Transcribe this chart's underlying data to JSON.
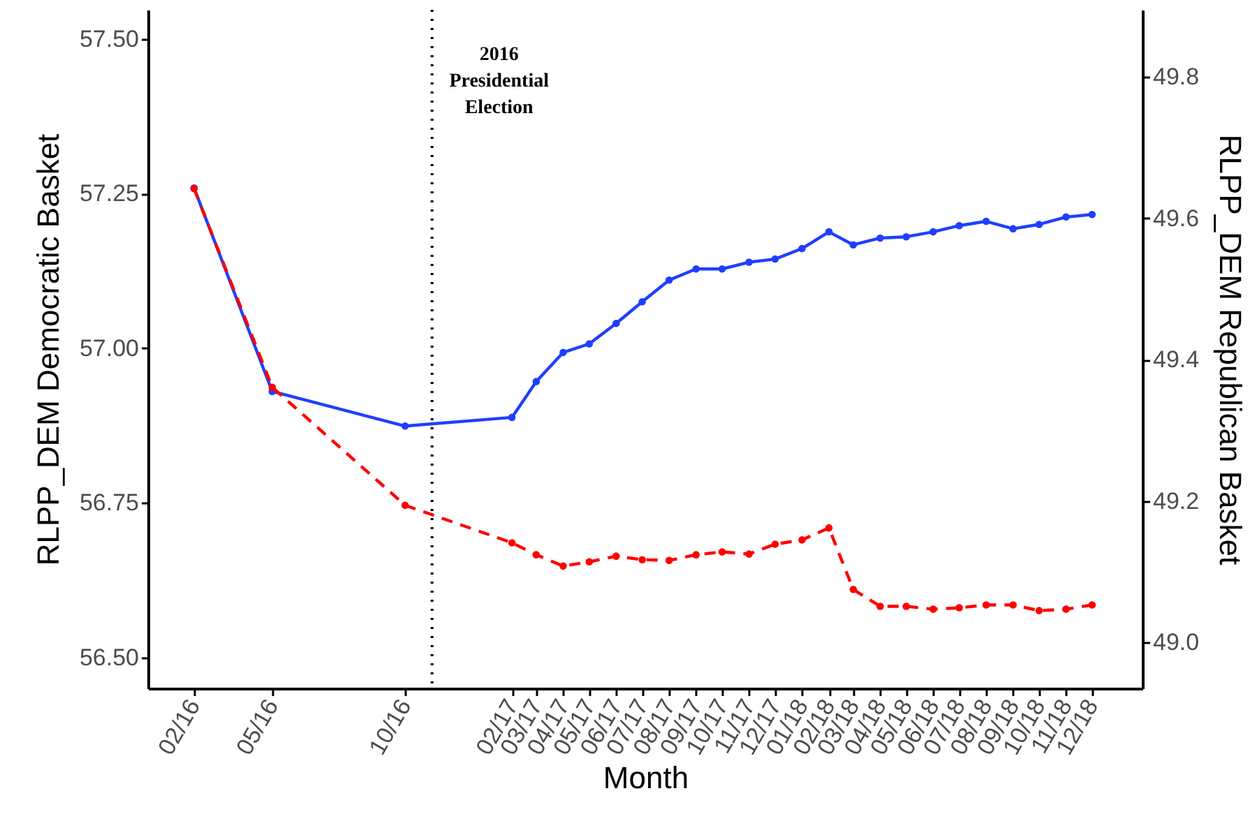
{
  "chart_data": {
    "type": "line",
    "xlabel": "Month",
    "ylabel": "RLPP_DEM Democratic Basket",
    "y2label": "RLPP_DEM Republican Basket",
    "x": [
      "2016-02",
      "2016-05",
      "2016-10",
      "2017-02",
      "2017-03",
      "2017-04",
      "2017-05",
      "2017-06",
      "2017-07",
      "2017-08",
      "2017-09",
      "2017-10",
      "2017-11",
      "2017-12",
      "2018-01",
      "2018-02",
      "2018-03",
      "2018-04",
      "2018-05",
      "2018-06",
      "2018-07",
      "2018-08",
      "2018-09",
      "2018-10",
      "2018-11",
      "2018-12"
    ],
    "series": [
      {
        "color": "#1f3fff",
        "line_style": "solid",
        "axis": "y",
        "values": [
          57.259,
          56.93,
          56.874,
          56.888,
          56.946,
          56.993,
          57.007,
          57.04,
          57.075,
          57.11,
          57.128,
          57.128,
          57.139,
          57.144,
          57.161,
          57.188,
          57.167,
          57.178,
          57.18,
          57.188,
          57.198,
          57.205,
          57.193,
          57.2,
          57.212,
          57.216
        ]
      },
      {
        "color": "#ff0000",
        "line_style": "dashed",
        "axis": "y2",
        "values": [
          49.642,
          49.361,
          49.194,
          49.141,
          49.124,
          49.108,
          49.114,
          49.122,
          49.117,
          49.116,
          49.124,
          49.128,
          49.125,
          49.139,
          49.145,
          49.162,
          49.075,
          49.051,
          49.051,
          49.047,
          49.049,
          49.053,
          49.053,
          49.045,
          49.047,
          49.053
        ]
      }
    ],
    "xlim": [
      "2015-12-10",
      "2019-01-28"
    ],
    "xticks": [
      {
        "value": "2016-02",
        "label": "02/16"
      },
      {
        "value": "2016-05",
        "label": "05/16"
      },
      {
        "value": "2016-10",
        "label": "10/16"
      },
      {
        "value": "2017-02",
        "label": "02/17"
      },
      {
        "value": "2017-03",
        "label": "03/17"
      },
      {
        "value": "2017-04",
        "label": "04/17"
      },
      {
        "value": "2017-05",
        "label": "05/17"
      },
      {
        "value": "2017-06",
        "label": "06/17"
      },
      {
        "value": "2017-07",
        "label": "07/17"
      },
      {
        "value": "2017-08",
        "label": "08/17"
      },
      {
        "value": "2017-09",
        "label": "09/17"
      },
      {
        "value": "2017-10",
        "label": "10/17"
      },
      {
        "value": "2017-11",
        "label": "11/17"
      },
      {
        "value": "2017-12",
        "label": "12/17"
      },
      {
        "value": "2018-01",
        "label": "01/18"
      },
      {
        "value": "2018-02",
        "label": "02/18"
      },
      {
        "value": "2018-03",
        "label": "03/18"
      },
      {
        "value": "2018-04",
        "label": "04/18"
      },
      {
        "value": "2018-05",
        "label": "05/18"
      },
      {
        "value": "2018-06",
        "label": "06/18"
      },
      {
        "value": "2018-07",
        "label": "07/18"
      },
      {
        "value": "2018-08",
        "label": "08/18"
      },
      {
        "value": "2018-09",
        "label": "09/18"
      },
      {
        "value": "2018-10",
        "label": "10/18"
      },
      {
        "value": "2018-11",
        "label": "11/18"
      },
      {
        "value": "2018-12",
        "label": "12/18"
      }
    ],
    "ylim": [
      56.45,
      57.547
    ],
    "yticks": [
      {
        "value": 56.5,
        "label": "56.50"
      },
      {
        "value": 56.75,
        "label": "56.75"
      },
      {
        "value": 57,
        "label": "57.00"
      },
      {
        "value": 57.25,
        "label": "57.25"
      },
      {
        "value": 57.5,
        "label": "57.50"
      }
    ],
    "y2lim": [
      48.935,
      49.895
    ],
    "y2ticks": [
      {
        "value": 49,
        "label": "49.0"
      },
      {
        "value": 49.2,
        "label": "49.2"
      },
      {
        "value": 49.4,
        "label": "49.4"
      },
      {
        "value": 49.6,
        "label": "49.6"
      },
      {
        "value": 49.8,
        "label": "49.8"
      }
    ],
    "ref_lines": [
      {
        "axis": "x",
        "value": "2016-11",
        "label": "2016 Presidential Election",
        "line_style": "dotted",
        "color": "#000000"
      }
    ],
    "marker": "circle"
  }
}
